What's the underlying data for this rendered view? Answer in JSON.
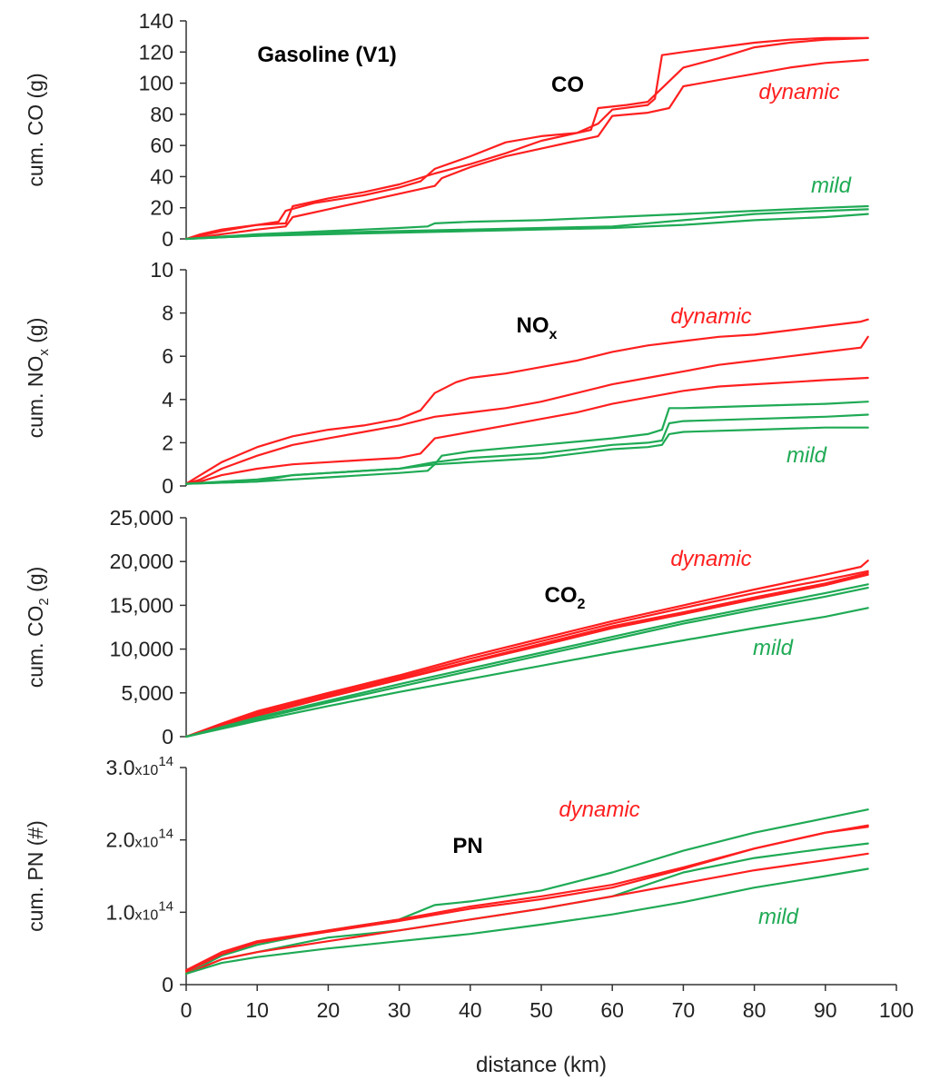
{
  "figure": {
    "title": "Gasoline (V1)",
    "xlabel": "distance (km)"
  },
  "colors": {
    "dynamic": "#ff1f1f",
    "mild": "#1faa55"
  },
  "chart_data": [
    {
      "type": "line",
      "title": "CO",
      "ylabel": "cum. CO (g)",
      "ylim": [
        0,
        140
      ],
      "yticks": [
        "0",
        "20",
        "40",
        "60",
        "80",
        "100",
        "120",
        "140"
      ],
      "xlim": [
        0,
        100
      ],
      "labels": {
        "dynamic": "dynamic",
        "mild": "mild"
      },
      "series": [
        {
          "group": "dynamic",
          "x": [
            0,
            2,
            5,
            10,
            13,
            14,
            18,
            25,
            30,
            33,
            35,
            40,
            45,
            50,
            55,
            57,
            58,
            62,
            65,
            70,
            75,
            80,
            85,
            90,
            96
          ],
          "y": [
            0,
            3,
            6,
            9,
            11,
            18,
            23,
            28,
            33,
            37,
            45,
            53,
            62,
            66,
            68,
            70,
            84,
            86,
            88,
            110,
            116,
            123,
            126,
            128,
            129
          ]
        },
        {
          "group": "dynamic",
          "x": [
            0,
            2,
            5,
            10,
            14,
            15,
            20,
            25,
            30,
            35,
            40,
            45,
            50,
            55,
            58,
            60,
            65,
            66,
            67,
            70,
            75,
            80,
            85,
            90,
            96
          ],
          "y": [
            0,
            2,
            5,
            9,
            10,
            21,
            26,
            30,
            35,
            42,
            48,
            55,
            63,
            68,
            74,
            83,
            86,
            90,
            118,
            120,
            123,
            126,
            128,
            129,
            129
          ]
        },
        {
          "group": "dynamic",
          "x": [
            0,
            2,
            5,
            10,
            14,
            15,
            20,
            25,
            30,
            35,
            36,
            40,
            45,
            50,
            55,
            58,
            60,
            65,
            68,
            70,
            75,
            80,
            85,
            90,
            96
          ],
          "y": [
            0,
            1,
            3,
            6,
            8,
            14,
            19,
            24,
            29,
            34,
            39,
            46,
            53,
            58,
            63,
            66,
            79,
            81,
            84,
            98,
            102,
            106,
            110,
            113,
            115
          ]
        },
        {
          "group": "mild",
          "x": [
            0,
            10,
            20,
            30,
            34,
            35,
            40,
            50,
            60,
            70,
            80,
            90,
            96
          ],
          "y": [
            0,
            3,
            5,
            7,
            8,
            10,
            11,
            12,
            14,
            16,
            18,
            20,
            21
          ]
        },
        {
          "group": "mild",
          "x": [
            0,
            10,
            20,
            30,
            40,
            50,
            60,
            70,
            80,
            90,
            96
          ],
          "y": [
            0,
            2,
            4,
            5,
            6,
            7,
            8,
            12,
            16,
            18,
            19
          ]
        },
        {
          "group": "mild",
          "x": [
            0,
            10,
            20,
            30,
            40,
            50,
            60,
            70,
            80,
            90,
            96
          ],
          "y": [
            0,
            2,
            3,
            4,
            5,
            6,
            7,
            9,
            12,
            14,
            16
          ]
        }
      ]
    },
    {
      "type": "line",
      "title": "NO",
      "title_sub": "x",
      "ylabel": "cum. NO",
      "ylabel_sub": "x",
      "ylabel_suffix": " (g)",
      "ylim": [
        0,
        10
      ],
      "yticks": [
        "0",
        "2",
        "4",
        "6",
        "8",
        "10"
      ],
      "xlim": [
        0,
        100
      ],
      "labels": {
        "dynamic": "dynamic",
        "mild": "mild"
      },
      "series": [
        {
          "group": "dynamic",
          "x": [
            0,
            2,
            5,
            10,
            15,
            20,
            25,
            30,
            33,
            35,
            38,
            40,
            45,
            50,
            55,
            60,
            65,
            70,
            75,
            80,
            85,
            90,
            95,
            96
          ],
          "y": [
            0.1,
            0.5,
            1.1,
            1.8,
            2.3,
            2.6,
            2.8,
            3.1,
            3.5,
            4.3,
            4.8,
            5.0,
            5.2,
            5.5,
            5.8,
            6.2,
            6.5,
            6.7,
            6.9,
            7.0,
            7.2,
            7.4,
            7.6,
            7.7
          ]
        },
        {
          "group": "dynamic",
          "x": [
            0,
            2,
            5,
            10,
            15,
            20,
            25,
            30,
            35,
            40,
            45,
            50,
            55,
            60,
            65,
            70,
            75,
            80,
            85,
            90,
            95,
            96
          ],
          "y": [
            0.1,
            0.3,
            0.8,
            1.4,
            1.9,
            2.2,
            2.5,
            2.8,
            3.2,
            3.4,
            3.6,
            3.9,
            4.3,
            4.7,
            5.0,
            5.3,
            5.6,
            5.8,
            6.0,
            6.2,
            6.4,
            6.9
          ]
        },
        {
          "group": "dynamic",
          "x": [
            0,
            2,
            5,
            10,
            15,
            20,
            25,
            30,
            33,
            35,
            40,
            45,
            50,
            55,
            60,
            65,
            70,
            75,
            80,
            85,
            90,
            96
          ],
          "y": [
            0.1,
            0.2,
            0.5,
            0.8,
            1.0,
            1.1,
            1.2,
            1.3,
            1.5,
            2.2,
            2.5,
            2.8,
            3.1,
            3.4,
            3.8,
            4.1,
            4.4,
            4.6,
            4.7,
            4.8,
            4.9,
            5.0
          ]
        },
        {
          "group": "mild",
          "x": [
            0,
            10,
            15,
            20,
            30,
            35,
            36,
            40,
            50,
            60,
            65,
            67,
            68,
            70,
            80,
            90,
            96
          ],
          "y": [
            0.1,
            0.3,
            0.5,
            0.6,
            0.8,
            1.0,
            1.4,
            1.6,
            1.9,
            2.2,
            2.4,
            2.6,
            3.6,
            3.6,
            3.7,
            3.8,
            3.9
          ]
        },
        {
          "group": "mild",
          "x": [
            0,
            10,
            15,
            20,
            30,
            35,
            40,
            50,
            60,
            65,
            67,
            68,
            70,
            80,
            90,
            96
          ],
          "y": [
            0.1,
            0.2,
            0.5,
            0.6,
            0.8,
            1.1,
            1.3,
            1.5,
            1.9,
            2.0,
            2.1,
            2.9,
            3.0,
            3.1,
            3.2,
            3.3
          ]
        },
        {
          "group": "mild",
          "x": [
            0,
            10,
            20,
            30,
            34,
            35,
            40,
            50,
            60,
            65,
            67,
            68,
            70,
            80,
            90,
            96
          ],
          "y": [
            0.1,
            0.2,
            0.4,
            0.6,
            0.7,
            1.0,
            1.1,
            1.3,
            1.7,
            1.8,
            1.9,
            2.4,
            2.5,
            2.6,
            2.7,
            2.7
          ]
        }
      ]
    },
    {
      "type": "line",
      "title": "CO",
      "title_sub": "2",
      "ylabel": "cum. CO",
      "ylabel_sub": "2",
      "ylabel_suffix": " (g)",
      "ylim": [
        0,
        25000
      ],
      "yticks": [
        "0",
        "5,000",
        "10,000",
        "15,000",
        "20,000",
        "25,000"
      ],
      "xlim": [
        0,
        100
      ],
      "labels": {
        "dynamic": "dynamic",
        "mild": "mild"
      },
      "series": [
        {
          "group": "dynamic",
          "x": [
            0,
            5,
            10,
            20,
            30,
            40,
            50,
            60,
            70,
            80,
            90,
            95,
            96
          ],
          "y": [
            0,
            1500,
            2900,
            5000,
            7000,
            9200,
            11200,
            13200,
            15000,
            16800,
            18500,
            19400,
            20100
          ]
        },
        {
          "group": "dynamic",
          "x": [
            0,
            5,
            10,
            20,
            30,
            40,
            50,
            60,
            70,
            80,
            90,
            96
          ],
          "y": [
            0,
            1400,
            2700,
            4800,
            6800,
            8900,
            10900,
            12900,
            14700,
            16400,
            17900,
            18900
          ]
        },
        {
          "group": "dynamic",
          "x": [
            0,
            5,
            10,
            20,
            30,
            40,
            50,
            60,
            70,
            80,
            90,
            96
          ],
          "y": [
            0,
            1300,
            2500,
            4600,
            6600,
            8600,
            10600,
            12600,
            14200,
            15900,
            17500,
            18700
          ]
        },
        {
          "group": "dynamic",
          "x": [
            0,
            5,
            10,
            20,
            30,
            40,
            50,
            60,
            70,
            80,
            90,
            96
          ],
          "y": [
            0,
            1200,
            2400,
            4500,
            6500,
            8500,
            10400,
            12400,
            14000,
            15700,
            17300,
            18500
          ]
        },
        {
          "group": "mild",
          "x": [
            0,
            5,
            10,
            20,
            30,
            40,
            50,
            60,
            70,
            80,
            90,
            96
          ],
          "y": [
            0,
            1100,
            2200,
            4100,
            6000,
            7800,
            9600,
            11400,
            13200,
            14800,
            16400,
            17400
          ]
        },
        {
          "group": "mild",
          "x": [
            0,
            5,
            10,
            20,
            30,
            40,
            50,
            60,
            70,
            80,
            90,
            96
          ],
          "y": [
            0,
            1000,
            2000,
            3900,
            5700,
            7500,
            9300,
            11100,
            12900,
            14500,
            16000,
            17000
          ]
        },
        {
          "group": "mild",
          "x": [
            0,
            5,
            10,
            20,
            30,
            40,
            50,
            60,
            70,
            80,
            90,
            96
          ],
          "y": [
            0,
            900,
            1800,
            3500,
            5100,
            6600,
            8100,
            9600,
            11000,
            12400,
            13700,
            14700
          ]
        }
      ]
    },
    {
      "type": "line",
      "title": "PN",
      "ylabel": "cum. PN (#)",
      "ylim": [
        0,
        300000000000000.0
      ],
      "yticks": [
        {
          "mant": "0",
          "times": "",
          "exp": ""
        },
        {
          "mant": "1.0",
          "times": "x10",
          "exp": "14"
        },
        {
          "mant": "2.0",
          "times": "x10",
          "exp": "14"
        },
        {
          "mant": "3.0",
          "times": "x10",
          "exp": "14"
        }
      ],
      "xlim": [
        0,
        100
      ],
      "xticks": [
        "0",
        "10",
        "20",
        "30",
        "40",
        "50",
        "60",
        "70",
        "80",
        "90",
        "100"
      ],
      "labels": {
        "dynamic": "dynamic",
        "mild": "mild"
      },
      "series": [
        {
          "group": "mild",
          "x": [
            0,
            5,
            10,
            20,
            30,
            35,
            40,
            50,
            60,
            70,
            80,
            90,
            96
          ],
          "y": [
            15000000000000.0,
            40000000000000.0,
            55000000000000.0,
            75000000000000.0,
            90000000000000.0,
            110000000000000.0,
            115000000000000.0,
            130000000000000.0,
            155000000000000.0,
            185000000000000.0,
            210000000000000.0,
            230000000000000.0,
            242000000000000.0
          ]
        },
        {
          "group": "dynamic",
          "x": [
            0,
            5,
            10,
            20,
            30,
            40,
            50,
            60,
            70,
            80,
            90,
            96
          ],
          "y": [
            20000000000000.0,
            45000000000000.0,
            60000000000000.0,
            75000000000000.0,
            90000000000000.0,
            108000000000000.0,
            122000000000000.0,
            138000000000000.0,
            162000000000000.0,
            188000000000000.0,
            210000000000000.0,
            220000000000000.0
          ]
        },
        {
          "group": "dynamic",
          "x": [
            0,
            5,
            10,
            20,
            30,
            40,
            50,
            60,
            70,
            80,
            90,
            96
          ],
          "y": [
            18000000000000.0,
            42000000000000.0,
            58000000000000.0,
            73000000000000.0,
            88000000000000.0,
            105000000000000.0,
            118000000000000.0,
            134000000000000.0,
            160000000000000.0,
            188000000000000.0,
            210000000000000.0,
            218000000000000.0
          ]
        },
        {
          "group": "mild",
          "x": [
            0,
            5,
            10,
            15,
            20,
            30,
            40,
            50,
            60,
            70,
            80,
            90,
            96
          ],
          "y": [
            15000000000000.0,
            35000000000000.0,
            45000000000000.0,
            55000000000000.0,
            65000000000000.0,
            75000000000000.0,
            90000000000000.0,
            105000000000000.0,
            122000000000000.0,
            155000000000000.0,
            175000000000000.0,
            188000000000000.0,
            195000000000000.0
          ]
        },
        {
          "group": "dynamic",
          "x": [
            0,
            5,
            10,
            20,
            30,
            40,
            50,
            60,
            70,
            80,
            90,
            96
          ],
          "y": [
            15000000000000.0,
            35000000000000.0,
            45000000000000.0,
            60000000000000.0,
            75000000000000.0,
            90000000000000.0,
            105000000000000.0,
            122000000000000.0,
            140000000000000.0,
            158000000000000.0,
            172000000000000.0,
            181000000000000.0
          ]
        },
        {
          "group": "mild",
          "x": [
            0,
            5,
            10,
            20,
            30,
            40,
            50,
            60,
            70,
            80,
            90,
            96
          ],
          "y": [
            15000000000000.0,
            30000000000000.0,
            38000000000000.0,
            50000000000000.0,
            60000000000000.0,
            70000000000000.0,
            83000000000000.0,
            97000000000000.0,
            114000000000000.0,
            134000000000000.0,
            150000000000000.0,
            160000000000000.0
          ]
        }
      ]
    }
  ]
}
